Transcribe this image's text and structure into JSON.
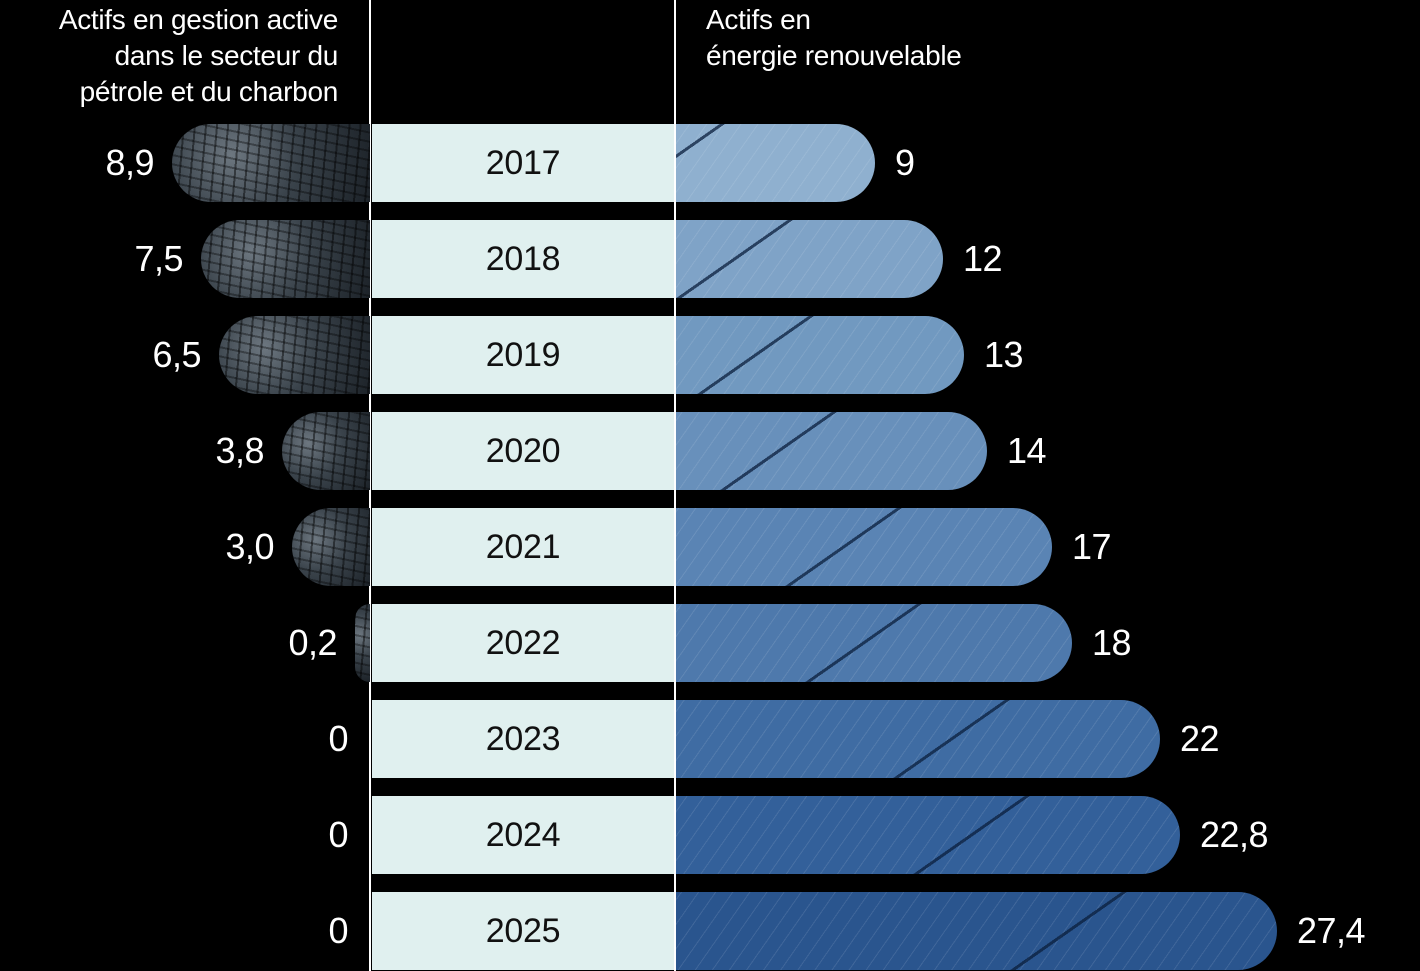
{
  "headers": {
    "left": [
      "Actifs en gestion active",
      "dans le secteur du",
      "pétrole et du charbon"
    ],
    "right": [
      "Actifs en",
      "énergie renouvelable"
    ]
  },
  "colors": {
    "background": "#000000",
    "year_band": "#e0f0ef",
    "renewable_light": "#8fb1d0",
    "renewable_dark": "#254f86",
    "fossil": "#3a434b"
  },
  "rows": [
    {
      "year": "2017",
      "fossil_label": "8,9",
      "renew_label": "9",
      "fossil_w": 198,
      "renew_w": 199,
      "renew_color": "#8fb0cf"
    },
    {
      "year": "2018",
      "fossil_label": "7,5",
      "renew_label": "12",
      "fossil_w": 169,
      "renew_w": 267,
      "renew_color": "#7fa3c7"
    },
    {
      "year": "2019",
      "fossil_label": "6,5",
      "renew_label": "13",
      "fossil_w": 151,
      "renew_w": 288,
      "renew_color": "#7199c0"
    },
    {
      "year": "2020",
      "fossil_label": "3,8",
      "renew_label": "14",
      "fossil_w": 88,
      "renew_w": 311,
      "renew_color": "#6890bb"
    },
    {
      "year": "2021",
      "fossil_label": "3,0",
      "renew_label": "17",
      "fossil_w": 78,
      "renew_w": 376,
      "renew_color": "#5a84b4"
    },
    {
      "year": "2022",
      "fossil_label": "0,2",
      "renew_label": "18",
      "fossil_w": 15,
      "renew_w": 396,
      "renew_color": "#4e79ac"
    },
    {
      "year": "2023",
      "fossil_label": "0",
      "renew_label": "22",
      "fossil_w": 0,
      "renew_w": 484,
      "renew_color": "#3f6ca3"
    },
    {
      "year": "2024",
      "fossil_label": "0",
      "renew_label": "22,8",
      "fossil_w": 0,
      "renew_w": 504,
      "renew_color": "#33609a"
    },
    {
      "year": "2025",
      "fossil_label": "0",
      "renew_label": "27,4",
      "fossil_w": 0,
      "renew_w": 601,
      "renew_color": "#2a558e"
    }
  ],
  "chart_data": {
    "type": "bar",
    "orientation": "horizontal-diverging",
    "categories": [
      "2017",
      "2018",
      "2019",
      "2020",
      "2021",
      "2022",
      "2023",
      "2024",
      "2025"
    ],
    "series": [
      {
        "name": "Actifs en gestion active dans le secteur du pétrole et du charbon",
        "values": [
          8.9,
          7.5,
          6.5,
          3.8,
          3.0,
          0.2,
          0,
          0,
          0
        ],
        "side": "left"
      },
      {
        "name": "Actifs en énergie renouvelable",
        "values": [
          9,
          12,
          13,
          14,
          17,
          18,
          22,
          22.8,
          27.4
        ],
        "side": "right"
      }
    ],
    "title": "",
    "xlabel": "",
    "ylabel": "",
    "legend_position": "top",
    "grid": false,
    "data_labels": true,
    "decimal_separator": ","
  }
}
